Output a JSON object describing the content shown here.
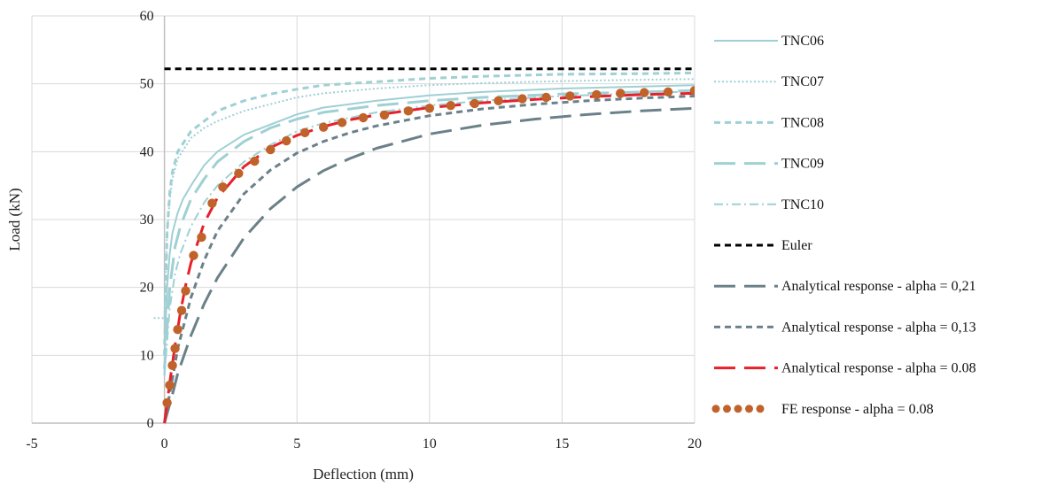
{
  "chart_data": {
    "type": "line",
    "title": "",
    "xlabel": "Deflection (mm)",
    "ylabel": "Load (kN)",
    "xlim": [
      -5,
      20
    ],
    "ylim": [
      0,
      60
    ],
    "xticks": [
      -5,
      0,
      5,
      10,
      15,
      20
    ],
    "yticks": [
      0,
      10,
      20,
      30,
      40,
      50,
      60
    ],
    "grid": true,
    "legend_position": "right",
    "series": [
      {
        "name": "TNC06",
        "color": "#9fd0d4",
        "dash": "solid",
        "x": [
          0,
          0.05,
          0.1,
          0.2,
          0.3,
          0.5,
          0.7,
          1,
          1.5,
          2,
          3,
          4,
          5,
          6,
          8,
          10,
          12,
          15,
          18,
          20
        ],
        "y": [
          7,
          15,
          20,
          25,
          28,
          31,
          33,
          35,
          38,
          40,
          42.5,
          44,
          45.5,
          46.5,
          47.5,
          48.3,
          48.8,
          49.3,
          49.6,
          49.8
        ]
      },
      {
        "name": "TNC07",
        "color": "#9fd0d4",
        "dash": "dotted",
        "x": [
          -0.4,
          -0.2,
          0,
          0.05,
          0.1,
          0.2,
          0.3,
          0.5,
          1,
          1.5,
          2,
          3,
          4,
          5,
          6,
          8,
          10,
          12,
          15,
          18,
          20
        ],
        "y": [
          15.5,
          15.5,
          15.5,
          22,
          28,
          33,
          36,
          39,
          42,
          43.5,
          44.5,
          46,
          47,
          48,
          48.6,
          49.3,
          49.8,
          50.1,
          50.4,
          50.6,
          50.7
        ]
      },
      {
        "name": "TNC08",
        "color": "#9fd0d4",
        "dash": "short-dash",
        "x": [
          0,
          0.05,
          0.1,
          0.2,
          0.3,
          0.5,
          1,
          1.5,
          2,
          3,
          4,
          5,
          6,
          8,
          10,
          12,
          15,
          18,
          20
        ],
        "y": [
          10,
          20,
          28,
          34,
          37,
          40,
          43,
          44.5,
          46,
          47.5,
          48.5,
          49.2,
          49.8,
          50.3,
          50.8,
          51.1,
          51.4,
          51.5,
          51.6
        ]
      },
      {
        "name": "TNC09",
        "color": "#9fd0d4",
        "dash": "long-dash",
        "x": [
          0,
          0.1,
          0.2,
          0.4,
          0.6,
          0.8,
          1,
          1.5,
          2,
          3,
          4,
          5,
          6,
          8,
          10,
          12,
          15,
          18,
          20
        ],
        "y": [
          8,
          14,
          20,
          26,
          29,
          31,
          33,
          36,
          38.5,
          41.5,
          43.5,
          44.8,
          45.8,
          46.8,
          47.5,
          48,
          48.5,
          48.8,
          49
        ]
      },
      {
        "name": "TNC10",
        "color": "#9fd0d4",
        "dash": "dash-dot",
        "x": [
          0,
          0.1,
          0.2,
          0.4,
          0.6,
          1,
          1.5,
          2,
          3,
          4,
          5,
          6,
          8,
          10,
          12,
          15,
          18,
          20
        ],
        "y": [
          7,
          12,
          17,
          22,
          25,
          29,
          32.5,
          35,
          38.5,
          41,
          43,
          44.2,
          45.8,
          46.8,
          47.5,
          48.2,
          48.6,
          48.9
        ]
      },
      {
        "name": "Euler",
        "color": "#000000",
        "dash": "short-dash",
        "x": [
          0,
          20
        ],
        "y": [
          52.2,
          52.2
        ]
      },
      {
        "name": "Analytical response - alpha = 0,21",
        "color": "#6b8189",
        "dash": "long-dash",
        "x": [
          0,
          0.3,
          0.5,
          1,
          1.5,
          2,
          3,
          4,
          5,
          6,
          7,
          8,
          10,
          12,
          14,
          16,
          18,
          20
        ],
        "y": [
          0,
          4.2,
          7.3,
          12.9,
          17.6,
          21.4,
          27.3,
          31.6,
          34.8,
          37.2,
          39,
          40.5,
          42.6,
          43.9,
          44.8,
          45.5,
          46,
          46.4
        ]
      },
      {
        "name": "Analytical response - alpha = 0,13",
        "color": "#6b8189",
        "dash": "short-dash",
        "x": [
          0,
          0.3,
          0.5,
          1,
          1.5,
          2,
          3,
          4,
          5,
          6,
          7,
          8,
          10,
          12,
          14,
          16,
          18,
          20
        ],
        "y": [
          0,
          6.5,
          11,
          18.5,
          24,
          28.3,
          33.8,
          37.3,
          39.8,
          41.5,
          42.8,
          43.8,
          45.3,
          46.3,
          47,
          47.5,
          47.9,
          48.2
        ]
      },
      {
        "name": "Analytical response - alpha = 0.08",
        "color": "#e8202a",
        "dash": "long-dash",
        "x": [
          0,
          0.2,
          0.4,
          0.6,
          0.8,
          1,
          1.5,
          2,
          3,
          4,
          5,
          6,
          7,
          8,
          10,
          12,
          14,
          16,
          18,
          20
        ],
        "y": [
          0,
          6,
          11.5,
          16.3,
          20.3,
          23.6,
          29.5,
          33.2,
          37.8,
          40.6,
          42.4,
          43.7,
          44.7,
          45.4,
          46.5,
          47.2,
          47.7,
          48.1,
          48.4,
          48.6
        ]
      },
      {
        "name": "FE response - alpha = 0.08",
        "color": "#c0622a",
        "dash": "dots",
        "x": [
          0.1,
          0.2,
          0.3,
          0.4,
          0.5,
          0.65,
          0.8,
          1.1,
          1.4,
          1.8,
          2.2,
          2.8,
          3.4,
          4,
          4.6,
          5.3,
          6,
          6.7,
          7.5,
          8.3,
          9.2,
          10,
          10.8,
          11.7,
          12.6,
          13.5,
          14.4,
          15.3,
          16.3,
          17.2,
          18.1,
          19,
          20
        ],
        "y": [
          3,
          5.6,
          8.5,
          11,
          13.8,
          16.6,
          19.5,
          24.7,
          27.4,
          32.4,
          34.8,
          36.8,
          38.6,
          40.3,
          41.6,
          42.8,
          43.6,
          44.3,
          45,
          45.4,
          46,
          46.4,
          46.8,
          47.1,
          47.5,
          47.8,
          48,
          48.2,
          48.4,
          48.6,
          48.7,
          48.8,
          49
        ]
      }
    ]
  }
}
